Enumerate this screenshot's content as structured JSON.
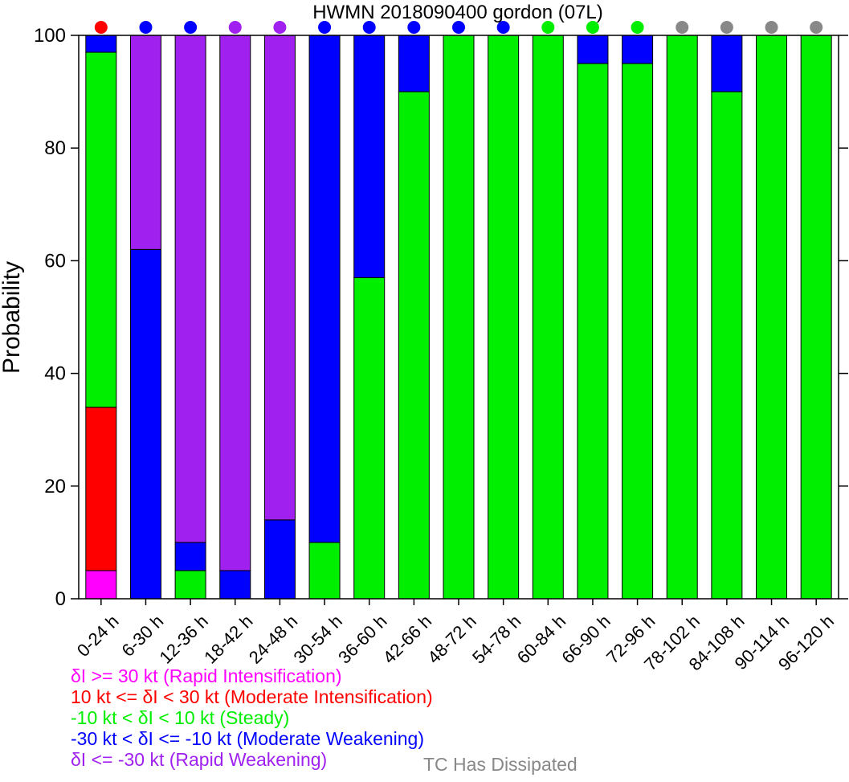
{
  "chart_data": {
    "type": "bar",
    "stacked": true,
    "title": "HWMN 2018090400 gordon (07L)",
    "xlabel": "",
    "ylabel": "Probability",
    "ylim": [
      0,
      100
    ],
    "yticks": [
      0,
      20,
      40,
      60,
      80,
      100
    ],
    "grid": false,
    "categories": [
      "0-24 h",
      "6-30 h",
      "12-36 h",
      "18-42 h",
      "24-48 h",
      "30-54 h",
      "36-60 h",
      "42-66 h",
      "48-72 h",
      "54-78 h",
      "60-84 h",
      "66-90 h",
      "72-96 h",
      "78-102 h",
      "84-108 h",
      "90-114 h",
      "96-120 h"
    ],
    "series": [
      {
        "key": "ri",
        "color": "#ff00ff",
        "values": [
          5,
          0,
          0,
          0,
          0,
          0,
          0,
          0,
          0,
          0,
          0,
          0,
          0,
          0,
          0,
          0,
          0
        ]
      },
      {
        "key": "mi",
        "color": "#ff0000",
        "values": [
          29,
          0,
          0,
          0,
          0,
          0,
          0,
          0,
          0,
          0,
          0,
          0,
          0,
          0,
          0,
          0,
          0
        ]
      },
      {
        "key": "steady",
        "color": "#00ee00",
        "values": [
          63,
          0,
          5,
          0,
          0,
          10,
          57,
          90,
          100,
          100,
          100,
          95,
          95,
          100,
          90,
          100,
          100
        ]
      },
      {
        "key": "mw",
        "color": "#0000ff",
        "values": [
          3,
          62,
          5,
          5,
          14,
          90,
          43,
          10,
          0,
          0,
          0,
          5,
          5,
          0,
          10,
          0,
          0
        ]
      },
      {
        "key": "rw",
        "color": "#a020f0",
        "values": [
          0,
          38,
          90,
          95,
          86,
          0,
          0,
          0,
          0,
          0,
          0,
          0,
          0,
          0,
          0,
          0,
          0
        ]
      }
    ],
    "top_markers": [
      "#ff0000",
      "#0000ff",
      "#0000ff",
      "#a020f0",
      "#a020f0",
      "#0000ff",
      "#0000ff",
      "#0000ff",
      "#0000ff",
      "#0000ff",
      "#00ee00",
      "#00ee00",
      "#00ee00",
      "#888888",
      "#888888",
      "#888888",
      "#888888"
    ],
    "legend": [
      {
        "text": "δI >= 30 kt (Rapid Intensification)",
        "color": "#ff00ff"
      },
      {
        "text": "10 kt <= δI < 30 kt (Moderate Intensification)",
        "color": "#ff0000"
      },
      {
        "text": "-10 kt < δI < 10 kt (Steady)",
        "color": "#00ee00"
      },
      {
        "text": "-30 kt < δI <= -10 kt (Moderate Weakening)",
        "color": "#0000ff"
      },
      {
        "text": "δI <= -30 kt (Rapid Weakening)",
        "color": "#a020f0"
      }
    ],
    "legend_extra": {
      "text": "TC Has Dissipated",
      "color": "#888888"
    },
    "legend_placement": "bottom-left"
  }
}
